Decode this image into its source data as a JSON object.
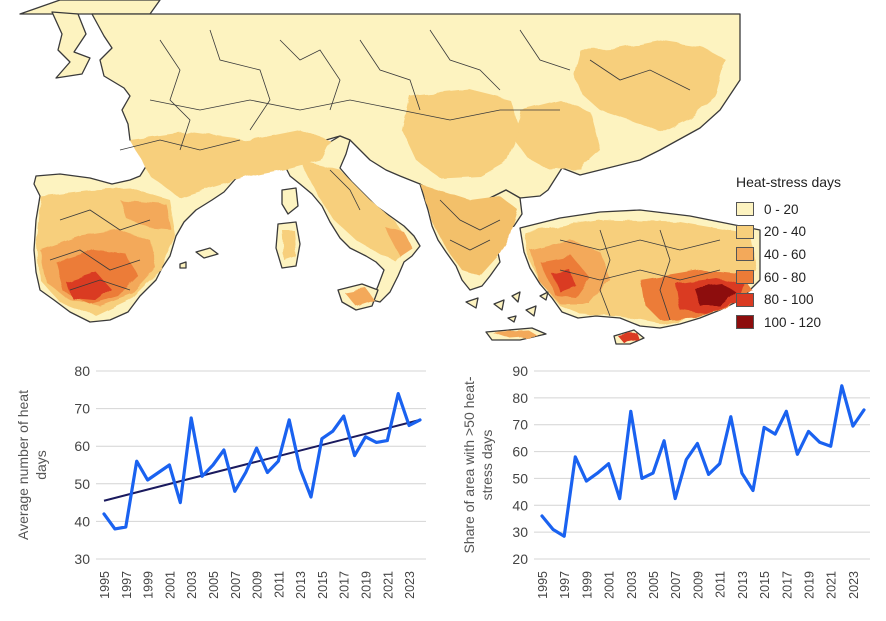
{
  "map": {
    "legend": {
      "title": "Heat-stress days",
      "classes": [
        {
          "label": "0 - 20",
          "color": "#fdf3c0"
        },
        {
          "label": "20 - 40",
          "color": "#f7cf7c"
        },
        {
          "label": "40 - 60",
          "color": "#f3a95a"
        },
        {
          "label": "60 - 80",
          "color": "#ec7b37"
        },
        {
          "label": "80 - 100",
          "color": "#da3a22"
        },
        {
          "label": "100 - 120",
          "color": "#8d0d0d"
        }
      ]
    }
  },
  "chart_data": [
    {
      "type": "line",
      "ylabel": "Average number of heat days",
      "ylim": [
        30,
        80
      ],
      "yticks": [
        30,
        40,
        50,
        60,
        70,
        80
      ],
      "x": [
        1995,
        1996,
        1997,
        1998,
        1999,
        2000,
        2001,
        2002,
        2003,
        2004,
        2005,
        2006,
        2007,
        2008,
        2009,
        2010,
        2011,
        2012,
        2013,
        2014,
        2015,
        2016,
        2017,
        2018,
        2019,
        2020,
        2021,
        2022,
        2023,
        2024
      ],
      "xtick_labels": [
        "1995",
        "1997",
        "1999",
        "2001",
        "2003",
        "2005",
        "2007",
        "2009",
        "2011",
        "2013",
        "2015",
        "2017",
        "2019",
        "2021",
        "2023"
      ],
      "series": [
        {
          "values": [
            42,
            38,
            38.5,
            56,
            51,
            53,
            55,
            45,
            67.5,
            52,
            55,
            59,
            48,
            53,
            59.5,
            53,
            56,
            67,
            54,
            46.5,
            62,
            64,
            68,
            57.5,
            62.5,
            61,
            61.5,
            74,
            65.5,
            67
          ],
          "color": "#1a62f0"
        }
      ],
      "trend": {
        "x": [
          1995,
          2024
        ],
        "y": [
          45.5,
          67
        ],
        "color": "#1a1a5e"
      },
      "grid": "horizontal"
    },
    {
      "type": "line",
      "ylabel": "Share of area with >50 heat-stress days",
      "ylim": [
        20,
        90
      ],
      "yticks": [
        20,
        30,
        40,
        50,
        60,
        70,
        80,
        90
      ],
      "x": [
        1995,
        1996,
        1997,
        1998,
        1999,
        2000,
        2001,
        2002,
        2003,
        2004,
        2005,
        2006,
        2007,
        2008,
        2009,
        2010,
        2011,
        2012,
        2013,
        2014,
        2015,
        2016,
        2017,
        2018,
        2019,
        2020,
        2021,
        2022,
        2023,
        2024
      ],
      "xtick_labels": [
        "1995",
        "1997",
        "1999",
        "2001",
        "2003",
        "2005",
        "2007",
        "2009",
        "2011",
        "2013",
        "2015",
        "2017",
        "2019",
        "2021",
        "2023"
      ],
      "series": [
        {
          "values": [
            36,
            31,
            28.5,
            58,
            49,
            52,
            55.5,
            42.5,
            75,
            50,
            52,
            64,
            42.5,
            57,
            63,
            51.5,
            55.5,
            73,
            52,
            45.5,
            69,
            66.5,
            75,
            59,
            67.5,
            63.5,
            62,
            84.5,
            69.5,
            75.5
          ],
          "color": "#1a62f0"
        }
      ],
      "grid": "horizontal"
    }
  ]
}
